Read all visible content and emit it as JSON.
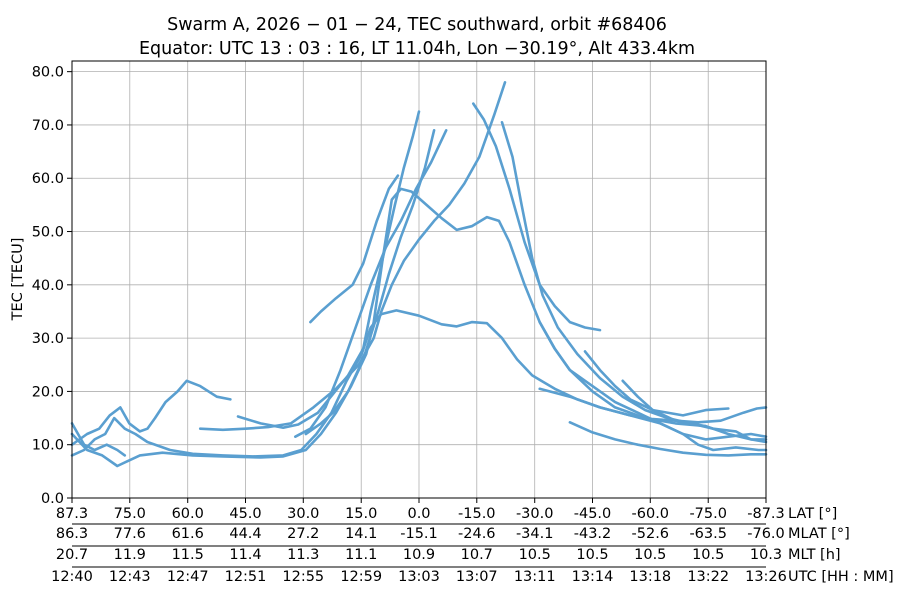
{
  "chart_data": {
    "type": "line",
    "title_line1": "Swarm A,  2026 − 01 − 24,  TEC southward,  orbit #68406",
    "title_line2": "Equator:  UTC 13 : 03 : 16,  LT 11.04h,  Lon  −30.19°,  Alt 433.4km",
    "ylabel": "TEC [TECU]",
    "ylim": [
      0,
      82
    ],
    "yticks": [
      "0.0",
      "10.0",
      "20.0",
      "30.0",
      "40.0",
      "50.0",
      "60.0",
      "70.0",
      "80.0"
    ],
    "x_axis_rows": [
      {
        "label": "LAT [°]",
        "ticks": [
          "87.3",
          "75.0",
          "60.0",
          "45.0",
          "30.0",
          "15.0",
          "0.0",
          "-15.0",
          "-30.0",
          "-45.0",
          "-60.0",
          "-75.0",
          "-87.3"
        ]
      },
      {
        "label": "MLAT [°]",
        "ticks": [
          "86.3",
          "77.6",
          "61.6",
          "44.4",
          "27.2",
          "14.1",
          "-15.1",
          "-24.6",
          "-34.1",
          "-43.2",
          "-52.6",
          "-63.5",
          "-76.0"
        ]
      },
      {
        "label": "MLT [h]",
        "ticks": [
          "20.7",
          "11.9",
          "11.5",
          "11.4",
          "11.3",
          "11.1",
          "10.9",
          "10.7",
          "10.5",
          "10.5",
          "10.5",
          "10.5",
          "10.3"
        ]
      },
      {
        "label": "UTC [HH : MM]",
        "ticks": [
          "12:40",
          "12:43",
          "12:47",
          "12:51",
          "12:55",
          "12:59",
          "13:03",
          "13:07",
          "13:11",
          "13:14",
          "13:18",
          "13:22",
          "13:26"
        ]
      }
    ],
    "xlim_minutes": [
      0,
      46
    ],
    "tick_positions_minutes": [
      0,
      3.83,
      7.67,
      11.5,
      15.33,
      19.17,
      23,
      26.83,
      30.67,
      34.5,
      38.33,
      42.17,
      46
    ],
    "grid": true,
    "color": "#5a9fd0",
    "series": [
      {
        "points": [
          [
            0,
            8
          ],
          [
            0.8,
            9
          ],
          [
            1.5,
            11
          ],
          [
            2.2,
            12
          ],
          [
            2.8,
            15
          ],
          [
            3.5,
            13
          ],
          [
            4.2,
            12
          ],
          [
            5,
            10.5
          ],
          [
            6.5,
            9
          ],
          [
            8,
            8.3
          ],
          [
            10,
            8
          ],
          [
            12,
            7.8
          ],
          [
            14,
            8
          ],
          [
            15.2,
            9
          ],
          [
            16.2,
            12
          ],
          [
            17.2,
            16
          ],
          [
            18.2,
            22
          ],
          [
            19.2,
            27
          ],
          [
            19.8,
            32
          ],
          [
            20.5,
            34.5
          ],
          [
            21.5,
            35.2
          ],
          [
            23,
            34.2
          ],
          [
            24.5,
            32.6
          ],
          [
            25.5,
            32.2
          ],
          [
            26.5,
            33
          ],
          [
            27.5,
            32.8
          ],
          [
            28.5,
            30
          ],
          [
            29.5,
            26
          ],
          [
            30.5,
            23
          ],
          [
            32,
            20.5
          ],
          [
            33.5,
            18.5
          ],
          [
            35,
            17
          ],
          [
            37,
            15.5
          ],
          [
            38.5,
            14.8
          ],
          [
            40,
            14.5
          ],
          [
            41.5,
            14.2
          ],
          [
            43,
            14.5
          ],
          [
            44.5,
            16
          ],
          [
            45.4,
            16.8
          ],
          [
            46,
            17
          ]
        ]
      },
      {
        "points": [
          [
            0,
            10
          ],
          [
            1,
            12
          ],
          [
            1.8,
            13
          ],
          [
            2.5,
            15.5
          ],
          [
            3.2,
            17
          ],
          [
            3.8,
            14
          ],
          [
            4.5,
            12.5
          ],
          [
            5,
            13
          ],
          [
            5.5,
            15
          ],
          [
            6.2,
            18
          ],
          [
            7,
            20
          ],
          [
            7.6,
            22
          ],
          [
            8.5,
            21
          ],
          [
            9.6,
            19
          ],
          [
            10.5,
            18.5
          ]
        ]
      },
      {
        "points": [
          [
            0,
            12
          ],
          [
            1,
            9
          ],
          [
            2,
            8
          ],
          [
            3,
            6
          ],
          [
            4.5,
            8
          ],
          [
            6,
            8.5
          ],
          [
            8,
            8
          ],
          [
            10,
            7.8
          ],
          [
            12.5,
            7.6
          ],
          [
            14,
            7.8
          ],
          [
            15.5,
            9
          ],
          [
            16.5,
            12
          ],
          [
            17.5,
            16
          ],
          [
            18.5,
            21
          ],
          [
            19.5,
            27
          ],
          [
            20,
            33
          ],
          [
            20.6,
            45
          ],
          [
            21.2,
            56
          ],
          [
            21.8,
            58
          ],
          [
            22.5,
            57.5
          ],
          [
            23.5,
            55
          ],
          [
            24.5,
            52.5
          ],
          [
            25.5,
            50.3
          ],
          [
            26.5,
            51
          ],
          [
            27.5,
            52.7
          ],
          [
            28.3,
            52
          ],
          [
            29,
            48
          ],
          [
            30,
            40
          ],
          [
            31,
            33
          ],
          [
            32,
            28
          ],
          [
            33,
            24
          ],
          [
            34.5,
            21
          ],
          [
            36,
            18
          ],
          [
            37.5,
            16
          ],
          [
            39,
            14
          ],
          [
            40.5,
            12
          ],
          [
            42,
            11
          ],
          [
            43.5,
            11.5
          ],
          [
            45,
            12
          ],
          [
            46,
            11.5
          ]
        ]
      },
      {
        "points": [
          [
            11,
            15.3
          ],
          [
            12.5,
            14
          ],
          [
            14,
            13.2
          ],
          [
            15,
            13.8
          ],
          [
            16.3,
            16
          ],
          [
            17.3,
            19.5
          ],
          [
            18.3,
            23
          ],
          [
            19.3,
            28
          ],
          [
            19.8,
            35
          ],
          [
            20.6,
            45
          ],
          [
            21.4,
            55
          ],
          [
            22,
            62
          ],
          [
            22.6,
            68
          ],
          [
            23,
            72.5
          ]
        ]
      },
      {
        "points": [
          [
            14.8,
            11.5
          ],
          [
            15.8,
            13
          ],
          [
            16.8,
            17
          ],
          [
            17.8,
            24
          ],
          [
            18.8,
            32
          ],
          [
            19.8,
            40
          ],
          [
            20.8,
            47
          ],
          [
            21.8,
            52
          ],
          [
            22.8,
            58
          ],
          [
            23.8,
            63
          ],
          [
            24.8,
            69
          ]
        ]
      },
      {
        "points": [
          [
            15.5,
            12
          ],
          [
            16.5,
            14
          ],
          [
            17.3,
            16
          ],
          [
            18.3,
            20
          ],
          [
            19.3,
            26
          ],
          [
            20.3,
            35
          ],
          [
            21,
            42
          ],
          [
            21.8,
            49
          ],
          [
            22.6,
            55
          ],
          [
            23.4,
            62
          ],
          [
            24,
            69
          ]
        ]
      },
      {
        "points": [
          [
            15.8,
            33
          ],
          [
            16.5,
            35
          ],
          [
            17.5,
            37.5
          ],
          [
            18.6,
            40
          ],
          [
            19.3,
            44
          ],
          [
            20.2,
            52
          ],
          [
            21,
            58
          ],
          [
            21.6,
            60.5
          ]
        ]
      },
      {
        "points": [
          [
            8.5,
            13
          ],
          [
            10,
            12.8
          ],
          [
            11.5,
            13
          ],
          [
            13,
            13.3
          ],
          [
            14.5,
            14
          ],
          [
            16,
            17
          ],
          [
            17.5,
            20.5
          ],
          [
            19,
            25
          ],
          [
            20,
            30
          ],
          [
            20.5,
            35
          ],
          [
            21.2,
            40
          ],
          [
            22,
            44.5
          ],
          [
            23,
            48.5
          ],
          [
            24,
            52
          ],
          [
            25,
            55
          ],
          [
            26,
            59
          ],
          [
            27,
            64
          ],
          [
            27.5,
            68
          ],
          [
            28,
            72
          ],
          [
            28.7,
            78
          ]
        ]
      },
      {
        "points": [
          [
            26.6,
            74
          ],
          [
            27.3,
            71
          ],
          [
            28.1,
            66
          ],
          [
            29,
            58
          ],
          [
            30,
            48
          ],
          [
            31,
            40
          ],
          [
            32,
            36
          ],
          [
            33,
            33
          ],
          [
            34,
            32
          ],
          [
            35,
            31.5
          ]
        ]
      },
      {
        "points": [
          [
            28.5,
            70.5
          ],
          [
            29.2,
            64
          ],
          [
            29.8,
            55
          ],
          [
            30.5,
            45
          ],
          [
            31.2,
            38
          ],
          [
            32.2,
            32
          ],
          [
            33.5,
            27
          ],
          [
            35,
            22.5
          ],
          [
            36.5,
            19
          ],
          [
            38,
            16.5
          ],
          [
            39.5,
            15
          ],
          [
            41,
            14
          ],
          [
            42.5,
            13
          ],
          [
            44,
            12.5
          ],
          [
            45,
            11
          ],
          [
            46,
            10.5
          ]
        ]
      },
      {
        "points": [
          [
            31,
            33
          ],
          [
            32,
            28
          ],
          [
            33,
            24
          ],
          [
            34.5,
            20
          ],
          [
            36,
            17
          ],
          [
            38,
            15
          ],
          [
            40,
            14
          ],
          [
            42,
            13.5
          ]
        ]
      },
      {
        "points": [
          [
            34,
            27.5
          ],
          [
            35,
            24
          ],
          [
            36,
            21
          ],
          [
            37,
            18.5
          ],
          [
            38.5,
            16.5
          ],
          [
            40.5,
            15.5
          ],
          [
            42,
            16.5
          ],
          [
            43.5,
            16.8
          ]
        ]
      },
      {
        "points": [
          [
            36.5,
            22
          ],
          [
            37.5,
            19
          ],
          [
            38.5,
            16.5
          ],
          [
            40,
            14.5
          ],
          [
            42,
            13.5
          ],
          [
            43.5,
            12
          ],
          [
            45,
            11
          ],
          [
            46,
            11
          ]
        ]
      },
      {
        "points": [
          [
            33,
            14.2
          ],
          [
            34.5,
            12.3
          ],
          [
            36,
            11
          ],
          [
            37.5,
            10
          ],
          [
            39,
            9.2
          ],
          [
            40.5,
            8.5
          ],
          [
            42,
            8.1
          ],
          [
            43.5,
            8
          ],
          [
            45,
            8.2
          ],
          [
            46,
            8.2
          ]
        ]
      },
      {
        "points": [
          [
            31,
            20.5
          ],
          [
            33,
            19
          ],
          [
            35,
            17
          ],
          [
            37,
            15.5
          ],
          [
            39,
            14
          ],
          [
            40.5,
            12
          ],
          [
            41.5,
            10
          ],
          [
            42.5,
            9
          ],
          [
            44,
            9.5
          ],
          [
            45.5,
            9
          ],
          [
            46,
            9
          ]
        ]
      },
      {
        "points": [
          [
            0,
            14
          ],
          [
            0.8,
            10
          ],
          [
            1.5,
            9
          ],
          [
            2.3,
            10
          ],
          [
            3,
            9
          ],
          [
            3.5,
            8
          ]
        ]
      }
    ]
  }
}
